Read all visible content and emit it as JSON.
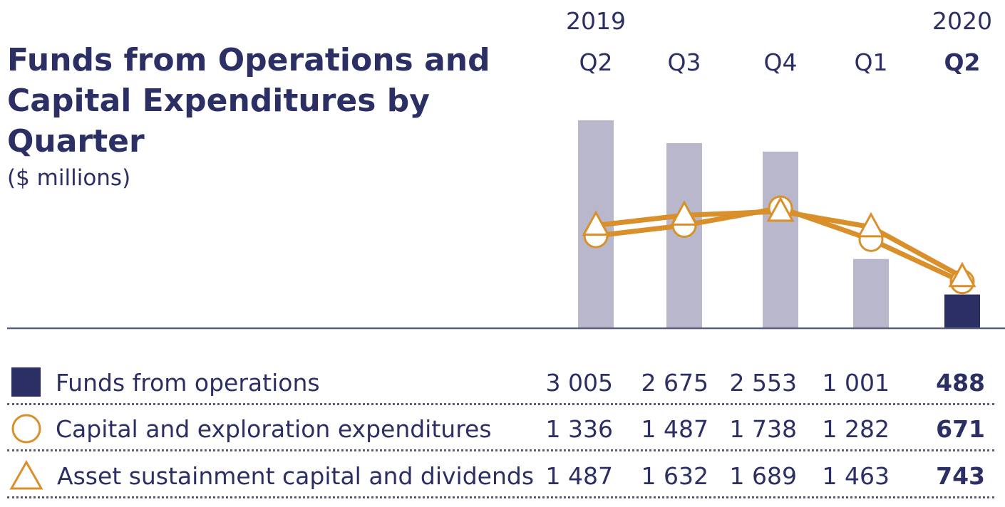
{
  "chart_data": {
    "type": "bar+line",
    "title": "Funds from Operations and Capital Expenditures by Quarter",
    "subtitle": "($ millions)",
    "years": [
      {
        "label": "2019",
        "anchor_index": 0
      },
      {
        "label": "2020",
        "anchor_index": 4
      }
    ],
    "categories": [
      "Q2",
      "Q3",
      "Q4",
      "Q1",
      "Q2"
    ],
    "current_index": 4,
    "ylim": [
      0,
      3200
    ],
    "series": [
      {
        "name": "Funds from operations",
        "kind": "bar",
        "marker": "square",
        "values": [
          3005,
          2675,
          2553,
          1001,
          488
        ],
        "display": [
          "3 005",
          "2 675",
          "2 553",
          "1 001",
          "488"
        ]
      },
      {
        "name": "Capital and exploration expenditures",
        "kind": "line",
        "marker": "circle",
        "values": [
          1336,
          1487,
          1738,
          1282,
          671
        ],
        "display": [
          "1 336",
          "1 487",
          "1 738",
          "1 282",
          "671"
        ]
      },
      {
        "name": "Asset sustainment capital and dividends",
        "kind": "line",
        "marker": "triangle",
        "values": [
          1487,
          1632,
          1689,
          1463,
          743
        ],
        "display": [
          "1 487",
          "1 632",
          "1 689",
          "1 463",
          "743"
        ]
      }
    ]
  },
  "colors": {
    "navy": "#2b2f63",
    "bar_past": "#b9b7cc",
    "bar_current": "#2b2f63",
    "line": "#d9902a",
    "baseline": "#5a5e7a"
  }
}
